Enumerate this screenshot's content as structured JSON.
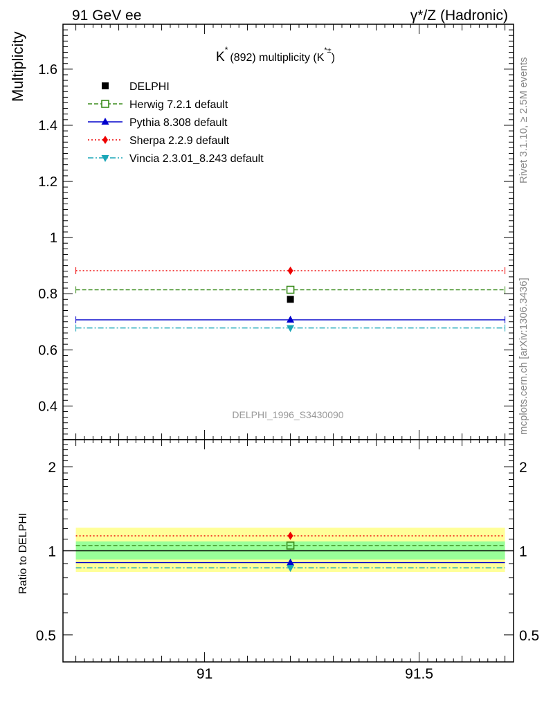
{
  "header": {
    "left": "91 GeV ee",
    "right": "γ*/Z (Hadronic)"
  },
  "side_labels": {
    "rivet": "Rivet 3.1.10, ≥ 2.5M events",
    "source": "mcplots.cern.ch [arXiv:1306.3436]"
  },
  "watermark": "DELPHI_1996_S3430090",
  "chart_data": [
    {
      "type": "scatter",
      "title": {
        "main": "K",
        "sup": "*",
        "rest": "(892) multiplicity (K",
        "rest_sup": "*±",
        "close": ")"
      },
      "ylabel": "Multiplicity",
      "xlim": [
        90.67,
        91.72
      ],
      "ylim": [
        0.28,
        1.76
      ],
      "yticks": [
        0.4,
        0.6,
        0.8,
        1,
        1.2,
        1.4,
        1.6
      ],
      "ytick_labels": [
        "0.4",
        "0.6",
        "0.8",
        "1",
        "1.2",
        "1.4",
        "1.6"
      ],
      "x_span": [
        90.7,
        91.7
      ],
      "x_point": 91.2,
      "legend_position": "top-left",
      "data": {
        "name": "DELPHI",
        "x": 91.2,
        "y": 0.78,
        "color": "#000000",
        "marker": "square"
      },
      "series": [
        {
          "name": "Herwig 7.2.1 default",
          "y": 0.814,
          "color": "#3a8c1c",
          "dash": "dashed",
          "marker": "open-square"
        },
        {
          "name": "Pythia 8.308 default",
          "y": 0.707,
          "color": "#0000cc",
          "dash": "solid",
          "marker": "triangle-up"
        },
        {
          "name": "Sherpa 2.2.9 default",
          "y": 0.882,
          "color": "#ee0000",
          "dash": "dotted",
          "marker": "diamond"
        },
        {
          "name": "Vincia 2.3.01_8.243 default",
          "y": 0.678,
          "color": "#1aa6b7",
          "dash": "dashdot",
          "marker": "triangle-down"
        }
      ]
    },
    {
      "type": "scatter",
      "ylabel": "Ratio to DELPHI",
      "xlim": [
        90.67,
        91.72
      ],
      "xticks": [
        91,
        91.5
      ],
      "xtick_labels": [
        "91",
        "91.5"
      ],
      "yscale": "log",
      "ylim": [
        0.4,
        2.5
      ],
      "yticks": [
        0.5,
        1,
        2
      ],
      "ytick_labels": [
        "0.5",
        "1",
        "2"
      ],
      "bands": [
        {
          "color": "#ffff99",
          "low": 0.84,
          "high": 1.21
        },
        {
          "color": "#99ff99",
          "low": 0.93,
          "high": 1.08
        }
      ],
      "reference": 1,
      "series": [
        {
          "name": "Herwig 7.2.1 default",
          "y": 1.044
        },
        {
          "name": "Pythia 8.308 default",
          "y": 0.907
        },
        {
          "name": "Sherpa 2.2.9 default",
          "y": 1.131
        },
        {
          "name": "Vincia 2.3.01_8.243 default",
          "y": 0.869
        }
      ]
    }
  ]
}
